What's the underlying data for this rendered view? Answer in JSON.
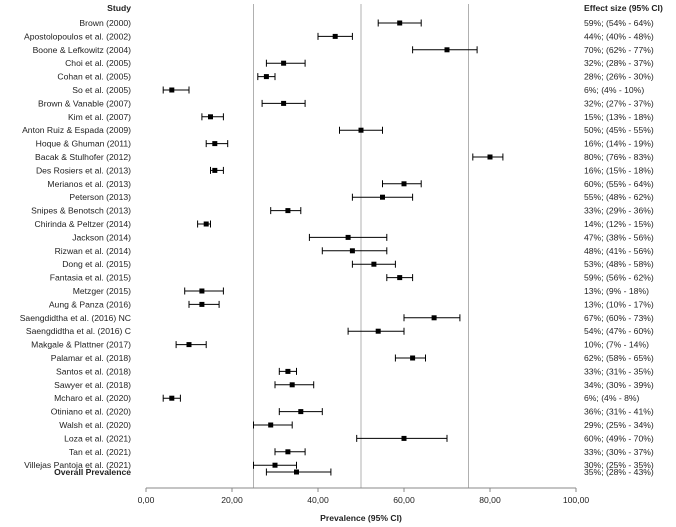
{
  "chart_data": {
    "type": "forest",
    "column_headers": {
      "study": "Study",
      "effect": "Effect size (95% CI)"
    },
    "xlabel": "Prevalence (95% CI)",
    "xlim": [
      0,
      100
    ],
    "x_ticks": [
      "0,00",
      "20,00",
      "40,00",
      "60,00",
      "80,00",
      "100,00"
    ],
    "x_tick_values": [
      0,
      20,
      40,
      60,
      80,
      100
    ],
    "gridlines": [
      25,
      50,
      75
    ],
    "studies": [
      {
        "name": "Brown (2000)",
        "estimate": 59,
        "lower": 54,
        "upper": 64,
        "label": "59%; (54% - 64%)"
      },
      {
        "name": "Apostolopoulos et al. (2002)",
        "estimate": 44,
        "lower": 40,
        "upper": 48,
        "label": "44%; (40% - 48%)"
      },
      {
        "name": "Boone & Lefkowitz (2004)",
        "estimate": 70,
        "lower": 62,
        "upper": 77,
        "label": "70%; (62% - 77%)"
      },
      {
        "name": "Choi et al. (2005)",
        "estimate": 32,
        "lower": 28,
        "upper": 37,
        "label": "32%; (28% - 37%)"
      },
      {
        "name": "Cohan et al. (2005)",
        "estimate": 28,
        "lower": 26,
        "upper": 30,
        "label": "28%; (26% - 30%)"
      },
      {
        "name": "So et al. (2005)",
        "estimate": 6,
        "lower": 4,
        "upper": 10,
        "label": "6%; (4% - 10%)"
      },
      {
        "name": "Brown & Vanable (2007)",
        "estimate": 32,
        "lower": 27,
        "upper": 37,
        "label": "32%; (27% - 37%)"
      },
      {
        "name": "Kim et al. (2007)",
        "estimate": 15,
        "lower": 13,
        "upper": 18,
        "label": "15%; (13% - 18%)"
      },
      {
        "name": "Anton Ruiz & Espada (2009)",
        "estimate": 50,
        "lower": 45,
        "upper": 55,
        "label": "50%; (45% - 55%)"
      },
      {
        "name": "Hoque & Ghuman (2011)",
        "estimate": 16,
        "lower": 14,
        "upper": 19,
        "label": "16%; (14% - 19%)"
      },
      {
        "name": "Bacak & Stulhofer (2012)",
        "estimate": 80,
        "lower": 76,
        "upper": 83,
        "label": "80%; (76% - 83%)"
      },
      {
        "name": "Des Rosiers et al. (2013)",
        "estimate": 16,
        "lower": 15,
        "upper": 18,
        "label": "16%; (15% - 18%)"
      },
      {
        "name": "Merianos et al. (2013)",
        "estimate": 60,
        "lower": 55,
        "upper": 64,
        "label": "60%; (55% - 64%)"
      },
      {
        "name": "Peterson (2013)",
        "estimate": 55,
        "lower": 48,
        "upper": 62,
        "label": "55%; (48% - 62%)"
      },
      {
        "name": "Snipes & Benotsch (2013)",
        "estimate": 33,
        "lower": 29,
        "upper": 36,
        "label": "33%; (29% - 36%)"
      },
      {
        "name": "Chirinda & Peltzer (2014)",
        "estimate": 14,
        "lower": 12,
        "upper": 15,
        "label": "14%; (12% - 15%)"
      },
      {
        "name": "Jackson (2014)",
        "estimate": 47,
        "lower": 38,
        "upper": 56,
        "label": "47%; (38% - 56%)"
      },
      {
        "name": "Rizwan et al. (2014)",
        "estimate": 48,
        "lower": 41,
        "upper": 56,
        "label": "48%; (41% - 56%)"
      },
      {
        "name": "Dong et al. (2015)",
        "estimate": 53,
        "lower": 48,
        "upper": 58,
        "label": "53%; (48% - 58%)"
      },
      {
        "name": "Fantasia et al. (2015)",
        "estimate": 59,
        "lower": 56,
        "upper": 62,
        "label": "59%; (56% - 62%)"
      },
      {
        "name": "Metzger (2015)",
        "estimate": 13,
        "lower": 9,
        "upper": 18,
        "label": "13%; (9% - 18%)"
      },
      {
        "name": "Aung & Panza (2016)",
        "estimate": 13,
        "lower": 10,
        "upper": 17,
        "label": "13%; (10% - 17%)"
      },
      {
        "name": "Saengdidtha et al. (2016) NC",
        "estimate": 67,
        "lower": 60,
        "upper": 73,
        "label": "67%; (60% - 73%)"
      },
      {
        "name": "Saengdidtha et al. (2016) C",
        "estimate": 54,
        "lower": 47,
        "upper": 60,
        "label": "54%; (47% - 60%)"
      },
      {
        "name": "Makgale & Plattner (2017)",
        "estimate": 10,
        "lower": 7,
        "upper": 14,
        "label": "10%; (7% - 14%)"
      },
      {
        "name": "Palamar et al. (2018)",
        "estimate": 62,
        "lower": 58,
        "upper": 65,
        "label": "62%; (58% - 65%)"
      },
      {
        "name": "Santos et al. (2018)",
        "estimate": 33,
        "lower": 31,
        "upper": 35,
        "label": "33%; (31% - 35%)"
      },
      {
        "name": "Sawyer et al. (2018)",
        "estimate": 34,
        "lower": 30,
        "upper": 39,
        "label": "34%; (30% - 39%)"
      },
      {
        "name": "Mcharo et al. (2020)",
        "estimate": 6,
        "lower": 4,
        "upper": 8,
        "label": "6%; (4% - 8%)"
      },
      {
        "name": "Otiniano et al. (2020)",
        "estimate": 36,
        "lower": 31,
        "upper": 41,
        "label": "36%; (31% - 41%)"
      },
      {
        "name": "Walsh et al. (2020)",
        "estimate": 29,
        "lower": 25,
        "upper": 34,
        "label": "29%; (25% - 34%)"
      },
      {
        "name": "Loza et al. (2021)",
        "estimate": 60,
        "lower": 49,
        "upper": 70,
        "label": "60%; (49% - 70%)"
      },
      {
        "name": "Tan et al. (2021)",
        "estimate": 33,
        "lower": 30,
        "upper": 37,
        "label": "33%; (30% - 37%)"
      },
      {
        "name": "Villejas Pantoja et al. (2021)",
        "estimate": 30,
        "lower": 25,
        "upper": 35,
        "label": "30%; (25% - 35%)"
      }
    ],
    "overall": {
      "name": "Overall Prevalence",
      "estimate": 35,
      "lower": 28,
      "upper": 43,
      "label": "35%; (28% - 43%)"
    },
    "colors": {
      "marker": "#000000",
      "grid": "#b0b0b0",
      "axis": "#888888",
      "text": "#222222"
    }
  }
}
